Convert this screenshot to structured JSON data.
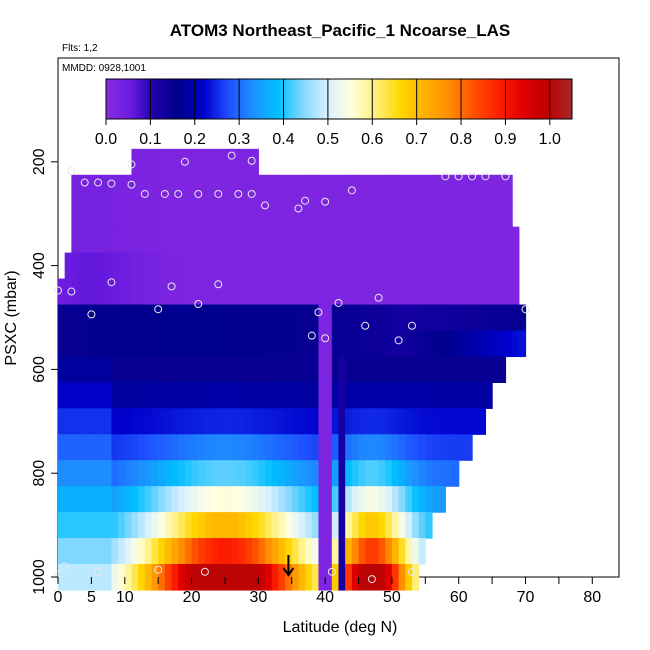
{
  "chart_data": {
    "type": "heatmap",
    "title": "ATOM3 Northeast_Pacific_1 Ncoarse_LAS",
    "flights_label": "Flts: 1,2",
    "date_label": "MMDD: 0928,1001",
    "xlabel": "Latitude (deg N)",
    "ylabel": "PSXC (mbar)",
    "xlim": [
      0,
      84
    ],
    "ylim": [
      1000,
      0
    ],
    "x_ticks": [
      0,
      5,
      10,
      20,
      30,
      40,
      50,
      60,
      70,
      80
    ],
    "x_minor_ticks": [
      15,
      25,
      35,
      45,
      55,
      65,
      75
    ],
    "y_ticks": [
      200,
      400,
      600,
      800,
      1000
    ],
    "colorbar": {
      "range": [
        0,
        1.05
      ],
      "ticks": [
        0.0,
        0.1,
        0.2,
        0.3,
        0.4,
        0.5,
        0.6,
        0.7,
        0.8,
        0.9,
        1.0
      ],
      "tick_labels": [
        "0.0",
        "0.1",
        "0.2",
        "0.3",
        "0.4",
        "0.5",
        "0.6",
        "0.7",
        "0.8",
        "0.9",
        "1.0"
      ],
      "colors": [
        "#8a2be2",
        "#6a1be0",
        "#1a00a8",
        "#00008b",
        "#0000cd",
        "#1e50ff",
        "#1e90ff",
        "#00bfff",
        "#7fd7ff",
        "#d6f0ff",
        "#ffffe0",
        "#fff07a",
        "#ffd700",
        "#ffb000",
        "#ff8c00",
        "#ff5000",
        "#ff2000",
        "#e00000",
        "#c00000",
        "#a52a2a"
      ]
    },
    "level_pressures": [
      200,
      250,
      300,
      350,
      400,
      450,
      500,
      550,
      600,
      650,
      700,
      750,
      800,
      850,
      900,
      950,
      1000
    ],
    "level_extents": [
      [
        11,
        30
      ],
      [
        2,
        68
      ],
      [
        2,
        68
      ],
      [
        2,
        69
      ],
      [
        1,
        69
      ],
      [
        0,
        69
      ],
      [
        0,
        70
      ],
      [
        0,
        70
      ],
      [
        0,
        67
      ],
      [
        0,
        65
      ],
      [
        0,
        64
      ],
      [
        0,
        62
      ],
      [
        0,
        60
      ],
      [
        0,
        58
      ],
      [
        0,
        56
      ],
      [
        0,
        55
      ],
      [
        0,
        54
      ]
    ],
    "arrow_latitude": 34.5,
    "points": [
      {
        "x": 2,
        "y": 218
      },
      {
        "x": 11,
        "y": 205
      },
      {
        "x": 19,
        "y": 200
      },
      {
        "x": 26,
        "y": 188
      },
      {
        "x": 29,
        "y": 198
      },
      {
        "x": 4,
        "y": 240
      },
      {
        "x": 6,
        "y": 240
      },
      {
        "x": 8,
        "y": 242
      },
      {
        "x": 11,
        "y": 244
      },
      {
        "x": 13,
        "y": 262
      },
      {
        "x": 16,
        "y": 262
      },
      {
        "x": 18,
        "y": 262
      },
      {
        "x": 21,
        "y": 262
      },
      {
        "x": 24,
        "y": 262
      },
      {
        "x": 27,
        "y": 262
      },
      {
        "x": 29,
        "y": 262
      },
      {
        "x": 31,
        "y": 284
      },
      {
        "x": 36,
        "y": 290
      },
      {
        "x": 37,
        "y": 275
      },
      {
        "x": 40,
        "y": 277
      },
      {
        "x": 44,
        "y": 255
      },
      {
        "x": 58,
        "y": 228
      },
      {
        "x": 60,
        "y": 228
      },
      {
        "x": 62,
        "y": 228
      },
      {
        "x": 64,
        "y": 228
      },
      {
        "x": 67,
        "y": 228
      },
      {
        "x": 8,
        "y": 432
      },
      {
        "x": 17,
        "y": 440
      },
      {
        "x": 24,
        "y": 436
      },
      {
        "x": 0,
        "y": 448
      },
      {
        "x": 2,
        "y": 450
      },
      {
        "x": 21,
        "y": 474
      },
      {
        "x": 15,
        "y": 484
      },
      {
        "x": 5,
        "y": 494
      },
      {
        "x": 42,
        "y": 472
      },
      {
        "x": 39,
        "y": 490
      },
      {
        "x": 48,
        "y": 462
      },
      {
        "x": 46,
        "y": 516
      },
      {
        "x": 53,
        "y": 516
      },
      {
        "x": 51,
        "y": 544
      },
      {
        "x": 38,
        "y": 535
      },
      {
        "x": 40,
        "y": 540
      },
      {
        "x": 70,
        "y": 484
      },
      {
        "x": 1,
        "y": 980
      },
      {
        "x": 6,
        "y": 990
      },
      {
        "x": 15,
        "y": 986
      },
      {
        "x": 22,
        "y": 990
      },
      {
        "x": 41,
        "y": 990
      },
      {
        "x": 47,
        "y": 1004
      },
      {
        "x": 53,
        "y": 990
      },
      {
        "x": 0,
        "y": 995
      }
    ]
  }
}
